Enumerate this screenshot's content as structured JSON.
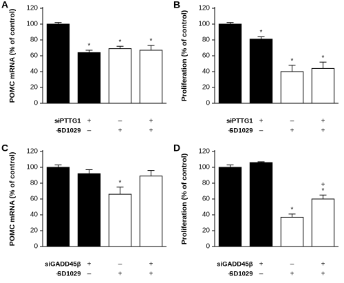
{
  "chart_data": [
    {
      "type": "bar",
      "panel": "A",
      "ylabel": "POMC mRNA (% of control)",
      "categories": [
        null,
        null,
        null,
        null
      ],
      "values": [
        100,
        64,
        69,
        67
      ],
      "errors": [
        2,
        3,
        3,
        6
      ],
      "colors": [
        "#000000",
        "#000000",
        "#ffffff",
        "#ffffff"
      ],
      "ylim": [
        0,
        120
      ],
      "yticks": [
        0,
        20,
        40,
        60,
        80,
        100,
        120
      ],
      "annotations": [
        {
          "bar": 1,
          "text": "*"
        },
        {
          "bar": 2,
          "text": "*"
        },
        {
          "bar": 3,
          "text": "*"
        }
      ],
      "conditions": [
        {
          "label": "siPTTG1",
          "signs": [
            "–",
            "+",
            "–",
            "+"
          ]
        },
        {
          "label": "SD1029",
          "signs": [
            "–",
            "–",
            "+",
            "+"
          ]
        }
      ]
    },
    {
      "type": "bar",
      "panel": "B",
      "ylabel": "Proliferation (% of control)",
      "categories": [
        null,
        null,
        null,
        null
      ],
      "values": [
        100,
        81,
        40,
        44
      ],
      "errors": [
        2,
        3,
        8,
        8
      ],
      "colors": [
        "#000000",
        "#000000",
        "#ffffff",
        "#ffffff"
      ],
      "ylim": [
        0,
        120
      ],
      "yticks": [
        0,
        20,
        40,
        60,
        80,
        100,
        120
      ],
      "annotations": [
        {
          "bar": 1,
          "text": "*"
        },
        {
          "bar": 2,
          "text": "*"
        },
        {
          "bar": 3,
          "text": "*"
        }
      ],
      "conditions": [
        {
          "label": "siPTTG1",
          "signs": [
            "–",
            "+",
            "–",
            "+"
          ]
        },
        {
          "label": "SD1029",
          "signs": [
            "–",
            "–",
            "+",
            "+"
          ]
        }
      ]
    },
    {
      "type": "bar",
      "panel": "C",
      "ylabel": "POMC mRNA (% of control)",
      "categories": [
        null,
        null,
        null,
        null
      ],
      "values": [
        100,
        92,
        66,
        89
      ],
      "errors": [
        3,
        5,
        9,
        7
      ],
      "colors": [
        "#000000",
        "#000000",
        "#ffffff",
        "#ffffff"
      ],
      "ylim": [
        0,
        120
      ],
      "yticks": [
        0,
        20,
        40,
        60,
        80,
        100,
        120
      ],
      "annotations": [
        {
          "bar": 2,
          "text": "*"
        }
      ],
      "conditions": [
        {
          "label": "siGADD45β",
          "signs": [
            "–",
            "+",
            "–",
            "+"
          ]
        },
        {
          "label": "SD1029",
          "signs": [
            "–",
            "–",
            "+",
            "+"
          ]
        }
      ]
    },
    {
      "type": "bar",
      "panel": "D",
      "ylabel": "Proliferation (% of control)",
      "categories": [
        null,
        null,
        null,
        null
      ],
      "values": [
        100,
        106,
        37,
        60
      ],
      "errors": [
        3,
        1,
        4,
        5
      ],
      "colors": [
        "#000000",
        "#000000",
        "#ffffff",
        "#ffffff"
      ],
      "ylim": [
        0,
        120
      ],
      "yticks": [
        0,
        20,
        40,
        60,
        80,
        100,
        120
      ],
      "annotations": [
        {
          "bar": 2,
          "text": "*"
        },
        {
          "bar": 3,
          "text": "*"
        },
        {
          "bar": 3,
          "text": "+"
        }
      ],
      "conditions": [
        {
          "label": "siGADD45β",
          "signs": [
            "–",
            "+",
            "–",
            "+"
          ]
        },
        {
          "label": "SD1029",
          "signs": [
            "–",
            "–",
            "+",
            "+"
          ]
        }
      ]
    }
  ]
}
